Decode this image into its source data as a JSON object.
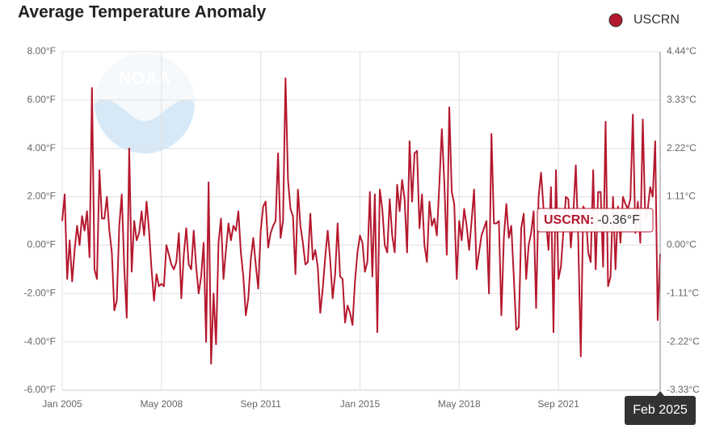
{
  "chart_data": {
    "type": "line",
    "title": "Average Temperature Anomaly",
    "watermark": "NOAA",
    "categories": [
      "Jan 2005",
      null,
      null,
      null,
      null,
      null,
      null,
      null,
      null,
      null,
      null,
      null,
      null,
      null,
      null,
      null,
      null,
      null,
      null,
      null,
      null,
      null,
      null,
      null,
      null,
      null,
      null,
      null,
      null,
      null,
      null,
      null,
      null,
      null,
      null,
      null,
      null,
      null,
      null,
      null,
      "May 2008",
      null,
      null,
      null,
      null,
      null,
      null,
      null,
      null,
      null,
      null,
      null,
      null,
      null,
      null,
      null,
      null,
      null,
      null,
      null,
      null,
      null,
      null,
      null,
      null,
      null,
      null,
      null,
      null,
      null,
      null,
      null,
      null,
      null,
      null,
      null,
      null,
      null,
      null,
      null,
      "Sep 2011",
      null,
      null,
      null,
      null,
      null,
      null,
      null,
      null,
      null,
      null,
      null,
      null,
      null,
      null,
      null,
      null,
      null,
      null,
      null,
      null,
      null,
      null,
      null,
      null,
      null,
      null,
      null,
      null,
      null,
      null,
      null,
      null,
      null,
      null,
      null,
      null,
      null,
      null,
      null,
      "Jan 2015",
      null,
      null,
      null,
      null,
      null,
      null,
      null,
      null,
      null,
      null,
      null,
      null,
      null,
      null,
      null,
      null,
      null,
      null,
      null,
      null,
      null,
      null,
      null,
      null,
      null,
      null,
      null,
      null,
      null,
      null,
      null,
      null,
      null,
      null,
      null,
      null,
      null,
      null,
      null,
      "May 2018",
      null,
      null,
      null,
      null,
      null,
      null,
      null,
      null,
      null,
      null,
      null,
      null,
      null,
      null,
      null,
      null,
      null,
      null,
      null,
      null,
      null,
      null,
      null,
      null,
      null,
      null,
      null,
      null,
      null,
      null,
      null,
      null,
      null,
      null,
      null,
      null,
      null,
      null,
      null,
      "Sep 2021",
      null,
      null,
      null,
      null,
      null,
      null,
      null,
      null,
      null,
      null,
      null,
      null,
      null,
      null,
      null,
      null,
      null,
      null,
      null,
      null,
      null,
      null,
      null,
      null,
      null,
      null,
      null,
      null,
      null,
      null,
      null,
      null,
      null,
      null,
      null,
      null,
      null,
      null,
      null,
      null,
      "Feb 2025"
    ],
    "series": [
      {
        "name": "USCRN",
        "color": "#b5182e",
        "values": [
          1.0,
          2.1,
          -1.4,
          0.2,
          -1.5,
          -0.2,
          0.8,
          0.0,
          1.2,
          0.6,
          1.4,
          -0.5,
          6.5,
          -1.0,
          -1.4,
          3.1,
          1.1,
          1.1,
          2.0,
          0.6,
          -0.3,
          -2.7,
          -2.3,
          0.8,
          2.1,
          -0.9,
          -3.0,
          4.0,
          -1.1,
          1.0,
          0.2,
          0.5,
          1.4,
          0.4,
          1.8,
          0.6,
          -1.0,
          -2.3,
          -1.2,
          -1.7,
          -1.6,
          -1.7,
          0.0,
          -0.4,
          -0.8,
          -1.0,
          -0.7,
          0.5,
          -2.2,
          -0.4,
          0.7,
          -0.8,
          -1.0,
          0.6,
          -0.9,
          -2.0,
          -1.3,
          0.1,
          -4.0,
          2.6,
          -4.9,
          -2.0,
          -4.1,
          0.1,
          1.1,
          -1.4,
          -0.2,
          0.9,
          0.2,
          0.8,
          0.6,
          1.4,
          -0.3,
          -1.3,
          -2.9,
          -2.2,
          -0.6,
          0.3,
          -0.8,
          -1.8,
          0.6,
          1.6,
          1.8,
          -0.1,
          0.5,
          0.8,
          1.0,
          3.8,
          0.3,
          1.0,
          6.9,
          2.7,
          1.5,
          1.2,
          -1.2,
          2.3,
          0.8,
          0.1,
          -0.8,
          -0.7,
          1.3,
          -0.6,
          -0.2,
          -0.9,
          -2.8,
          -1.8,
          -0.5,
          0.6,
          -0.6,
          -2.2,
          -1.2,
          0.9,
          -1.3,
          -1.4,
          -3.2,
          -2.5,
          -2.8,
          -3.3,
          -1.5,
          -0.3,
          0.4,
          0.1,
          -1.1,
          -0.7,
          2.2,
          -1.3,
          2.1,
          -3.6,
          2.3,
          1.5,
          0.0,
          -0.3,
          1.9,
          0.4,
          -0.3,
          2.5,
          1.4,
          2.7,
          1.9,
          -0.3,
          4.3,
          1.8,
          3.8,
          3.9,
          0.7,
          2.1,
          0.0,
          -0.7,
          1.8,
          0.8,
          1.1,
          0.4,
          2.5,
          4.8,
          2.6,
          -0.4,
          5.7,
          2.2,
          1.7,
          -1.4,
          1.0,
          0.2,
          1.5,
          0.8,
          -0.2,
          1.0,
          2.3,
          -1.0,
          -0.3,
          0.4,
          0.7,
          1.0,
          -2.0,
          4.6,
          0.9,
          0.9,
          1.0,
          -2.9,
          0.3,
          1.7,
          0.3,
          0.8,
          -1.3,
          -3.5,
          -3.4,
          0.7,
          1.3,
          -1.4,
          0.0,
          0.5,
          1.4,
          -2.6,
          2.0,
          3.0,
          1.5,
          1.0,
          -0.2,
          2.4,
          -3.6,
          3.1,
          -1.4,
          -0.9,
          0.6,
          2.0,
          1.9,
          -0.1,
          1.3,
          3.3,
          0.2,
          -4.6,
          1.6,
          1.4,
          -0.3,
          -0.7,
          3.1,
          -1.0,
          2.2,
          2.2,
          -0.9,
          5.1,
          -1.7,
          -1.3,
          2.0,
          -1.0,
          1.6,
          0.1,
          2.0,
          1.7,
          1.5,
          1.9,
          5.4,
          0.5,
          1.8,
          0.1,
          5.2,
          1.0,
          1.5,
          2.4,
          2.0,
          4.3,
          -3.1,
          -0.36
        ]
      }
    ],
    "ylim": [
      -6,
      8
    ],
    "yticks": [
      {
        "value": -6,
        "label": "-6.00°F"
      },
      {
        "value": -4,
        "label": "-4.00°F"
      },
      {
        "value": -2,
        "label": "-2.00°F"
      },
      {
        "value": 0,
        "label": "0.00°F"
      },
      {
        "value": 2,
        "label": "2.00°F"
      },
      {
        "value": 4,
        "label": "4.00°F"
      },
      {
        "value": 6,
        "label": "6.00°F"
      },
      {
        "value": 8,
        "label": "8.00°F"
      }
    ],
    "y2lim": [
      -3.33,
      4.44
    ],
    "y2ticks": [
      {
        "value": -3.33,
        "label": "-3.33°C"
      },
      {
        "value": -2.22,
        "label": "-2.22°C"
      },
      {
        "value": -1.11,
        "label": "-1.11°C"
      },
      {
        "value": 0,
        "label": "0.00°C"
      },
      {
        "value": 1.11,
        "label": "1.11°C"
      },
      {
        "value": 2.22,
        "label": "2.22°C"
      },
      {
        "value": 3.33,
        "label": "3.33°C"
      },
      {
        "value": 4.44,
        "label": "4.44°C"
      }
    ],
    "grid": true,
    "legend": "top-right",
    "tooltip": {
      "name_label": "USCRN:",
      "value_label": "-0.36°F"
    }
  }
}
